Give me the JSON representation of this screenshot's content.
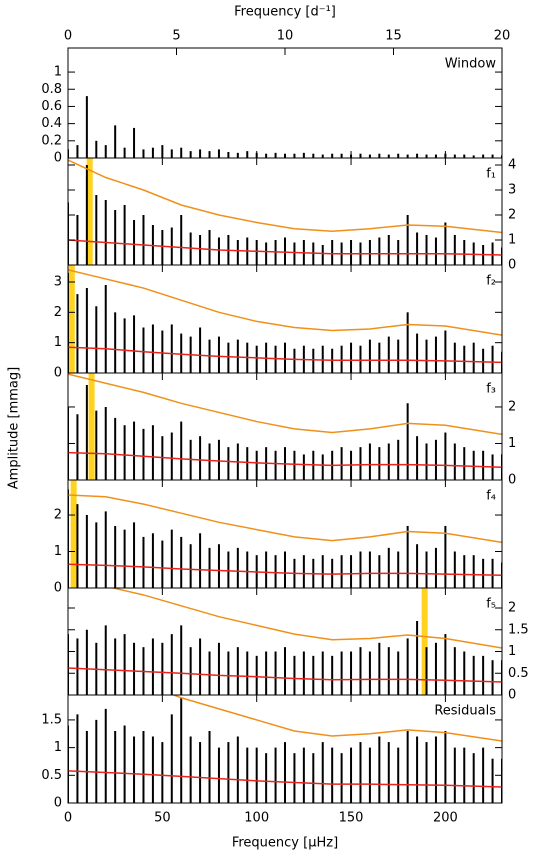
{
  "figure": {
    "top_axis": {
      "label": "Frequency [d⁻¹]",
      "xlim": [
        0,
        20
      ],
      "xticks": [
        0,
        5,
        10,
        15,
        20
      ]
    },
    "bottom_axis": {
      "label": "Frequency [μHz]",
      "xlim": [
        0,
        230
      ],
      "xticks": [
        0,
        50,
        100,
        150,
        200
      ]
    },
    "y_label": "Amplitude [mmag]",
    "x": [
      0,
      5,
      10,
      15,
      20,
      25,
      30,
      35,
      40,
      45,
      50,
      55,
      60,
      65,
      70,
      75,
      80,
      85,
      90,
      95,
      100,
      105,
      110,
      115,
      120,
      125,
      130,
      135,
      140,
      145,
      150,
      155,
      160,
      165,
      170,
      175,
      180,
      185,
      190,
      195,
      200,
      205,
      210,
      215,
      220,
      225,
      230
    ],
    "curve_x": [
      0,
      20,
      40,
      60,
      80,
      100,
      120,
      140,
      160,
      180,
      200,
      230
    ],
    "color": "#000000",
    "noise_color": "#e8241c",
    "significance_color": "#f0901a",
    "highlight_color": "#ffd21f"
  },
  "chart_data": [
    {
      "type": "bar",
      "label": "Window",
      "ylim": [
        0,
        1.28
      ],
      "yticks": [
        0,
        0.2,
        0.4,
        0.6,
        0.8,
        1
      ],
      "ytick_side": "left",
      "values": [
        0.1,
        0.15,
        0.72,
        0.2,
        0.15,
        0.38,
        0.12,
        0.35,
        0.1,
        0.12,
        0.15,
        0.1,
        0.12,
        0.08,
        0.1,
        0.08,
        0.1,
        0.07,
        0.06,
        0.08,
        0.06,
        0.05,
        0.06,
        0.05,
        0.05,
        0.06,
        0.05,
        0.04,
        0.05,
        0.05,
        0.04,
        0.05,
        0.04,
        0.05,
        0.04,
        0.05,
        0.04,
        0.05,
        0.04,
        0.04,
        0.05,
        0.04,
        0.04,
        0.03,
        0.04,
        0.04,
        0.03
      ]
    },
    {
      "type": "bar",
      "label": "f₁",
      "ylim": [
        0,
        4.28
      ],
      "yticks": [
        0,
        1,
        2,
        3,
        4
      ],
      "ytick_side": "right",
      "highlight": 11.5,
      "values": [
        2.5,
        2.0,
        4.0,
        2.8,
        2.6,
        2.2,
        2.4,
        1.8,
        2.0,
        1.6,
        1.4,
        1.5,
        2.0,
        1.3,
        1.2,
        1.4,
        1.1,
        1.2,
        1.0,
        1.1,
        1.0,
        0.9,
        1.0,
        1.1,
        0.9,
        1.0,
        0.9,
        0.8,
        1.0,
        0.9,
        1.0,
        0.9,
        1.0,
        1.1,
        1.2,
        1.0,
        2.0,
        1.3,
        1.2,
        1.1,
        1.7,
        1.2,
        1.0,
        0.9,
        0.8,
        0.9,
        0.7
      ],
      "noise": [
        1.0,
        0.9,
        0.8,
        0.7,
        0.6,
        0.55,
        0.5,
        0.45,
        0.45,
        0.45,
        0.45,
        0.4
      ],
      "significance": [
        4.2,
        3.5,
        3.0,
        2.4,
        2.0,
        1.7,
        1.45,
        1.35,
        1.45,
        1.6,
        1.55,
        1.3
      ]
    },
    {
      "type": "bar",
      "label": "f₂",
      "ylim": [
        0,
        3.56
      ],
      "yticks": [
        0,
        1,
        2,
        3
      ],
      "ytick_side": "left",
      "highlight": 2,
      "values": [
        3.3,
        2.6,
        2.8,
        2.2,
        2.9,
        2.0,
        1.8,
        1.9,
        1.5,
        1.6,
        1.4,
        1.6,
        1.3,
        1.2,
        1.5,
        1.1,
        1.2,
        1.0,
        1.1,
        1.0,
        0.9,
        1.0,
        0.9,
        1.0,
        0.8,
        0.9,
        0.8,
        0.9,
        0.8,
        0.9,
        1.0,
        0.9,
        1.1,
        1.0,
        1.2,
        1.1,
        2.0,
        1.3,
        1.1,
        1.2,
        1.4,
        1.0,
        0.9,
        1.0,
        0.8,
        0.9,
        0.7
      ],
      "noise": [
        0.85,
        0.8,
        0.7,
        0.62,
        0.55,
        0.5,
        0.45,
        0.42,
        0.42,
        0.42,
        0.4,
        0.35
      ],
      "significance": [
        3.4,
        3.1,
        2.8,
        2.4,
        2.0,
        1.7,
        1.5,
        1.4,
        1.45,
        1.6,
        1.55,
        1.25
      ]
    },
    {
      "type": "bar",
      "label": "f₃",
      "ylim": [
        0,
        2.93
      ],
      "yticks": [
        0,
        1,
        2
      ],
      "ytick_side": "right",
      "highlight": 12.5,
      "values": [
        2.0,
        1.8,
        2.6,
        1.9,
        2.0,
        1.7,
        1.5,
        1.6,
        1.4,
        1.5,
        1.2,
        1.3,
        1.6,
        1.1,
        1.2,
        1.0,
        1.1,
        0.9,
        1.0,
        0.9,
        0.8,
        0.9,
        0.8,
        0.9,
        0.8,
        0.7,
        0.8,
        0.7,
        0.8,
        0.9,
        0.8,
        0.9,
        1.0,
        0.9,
        1.0,
        1.1,
        2.1,
        1.2,
        1.0,
        1.1,
        1.3,
        1.0,
        0.9,
        0.8,
        0.8,
        0.7,
        0.7
      ],
      "noise": [
        0.75,
        0.72,
        0.65,
        0.58,
        0.52,
        0.47,
        0.43,
        0.4,
        0.42,
        0.42,
        0.4,
        0.35
      ],
      "significance": [
        2.9,
        2.65,
        2.4,
        2.1,
        1.85,
        1.6,
        1.4,
        1.3,
        1.4,
        1.55,
        1.5,
        1.25
      ]
    },
    {
      "type": "bar",
      "label": "f₄",
      "ylim": [
        0,
        2.96
      ],
      "yticks": [
        0,
        1,
        2
      ],
      "ytick_side": "left",
      "highlight": 3,
      "values": [
        2.7,
        2.3,
        2.0,
        1.8,
        2.1,
        1.7,
        1.6,
        1.8,
        1.4,
        1.5,
        1.3,
        1.6,
        1.4,
        1.2,
        1.5,
        1.1,
        1.2,
        1.0,
        1.1,
        1.0,
        0.9,
        1.0,
        0.9,
        1.0,
        0.8,
        0.9,
        0.8,
        0.9,
        0.8,
        0.9,
        0.9,
        1.0,
        1.0,
        0.9,
        1.1,
        1.0,
        1.7,
        1.2,
        1.0,
        1.1,
        1.7,
        1.0,
        0.9,
        0.9,
        0.8,
        0.8,
        0.7
      ],
      "noise": [
        0.65,
        0.62,
        0.58,
        0.52,
        0.48,
        0.44,
        0.4,
        0.38,
        0.4,
        0.4,
        0.38,
        0.35
      ],
      "significance": [
        2.55,
        2.5,
        2.3,
        2.05,
        1.8,
        1.6,
        1.4,
        1.3,
        1.4,
        1.55,
        1.5,
        1.25
      ]
    },
    {
      "type": "bar",
      "label": "f₅",
      "ylim": [
        0,
        2.46
      ],
      "yticks": [
        0,
        0.5,
        1,
        1.5,
        2
      ],
      "ytick_side": "right",
      "highlight": 189,
      "values": [
        1.4,
        1.3,
        1.5,
        1.2,
        1.6,
        1.3,
        1.4,
        1.2,
        1.1,
        1.3,
        1.2,
        1.4,
        1.6,
        1.1,
        1.3,
        1.0,
        1.2,
        1.0,
        1.1,
        1.0,
        0.9,
        1.0,
        1.0,
        1.1,
        0.9,
        1.0,
        0.9,
        1.0,
        0.9,
        1.0,
        1.0,
        1.1,
        1.0,
        1.2,
        1.1,
        1.0,
        1.3,
        1.7,
        1.1,
        1.2,
        1.4,
        1.1,
        1.0,
        0.9,
        0.9,
        0.8,
        0.8
      ],
      "noise": [
        0.62,
        0.58,
        0.54,
        0.5,
        0.45,
        0.42,
        0.38,
        0.35,
        0.36,
        0.36,
        0.34,
        0.3
      ],
      "significance": [
        2.8,
        2.5,
        2.3,
        2.05,
        1.8,
        1.6,
        1.4,
        1.27,
        1.3,
        1.38,
        1.3,
        1.08
      ]
    },
    {
      "type": "bar",
      "label": "Residuals",
      "ylim": [
        0,
        1.95
      ],
      "yticks": [
        0,
        0.5,
        1,
        1.5
      ],
      "ytick_side": "left",
      "values": [
        1.4,
        1.6,
        1.3,
        1.5,
        1.7,
        1.3,
        1.4,
        1.2,
        1.3,
        1.2,
        1.1,
        1.6,
        1.9,
        1.2,
        1.1,
        1.3,
        1.0,
        1.1,
        1.2,
        1.0,
        1.0,
        0.9,
        1.0,
        1.1,
        0.9,
        1.0,
        0.9,
        1.1,
        1.0,
        0.9,
        1.0,
        1.1,
        1.0,
        1.2,
        1.1,
        1.0,
        1.3,
        1.2,
        1.1,
        1.2,
        1.3,
        1.0,
        1.0,
        0.9,
        1.0,
        0.8,
        0.8
      ],
      "noise": [
        0.58,
        0.55,
        0.52,
        0.48,
        0.44,
        0.4,
        0.37,
        0.34,
        0.34,
        0.33,
        0.32,
        0.29
      ],
      "significance": [
        2.7,
        2.4,
        2.15,
        1.9,
        1.7,
        1.5,
        1.3,
        1.21,
        1.25,
        1.32,
        1.27,
        1.12
      ]
    }
  ]
}
